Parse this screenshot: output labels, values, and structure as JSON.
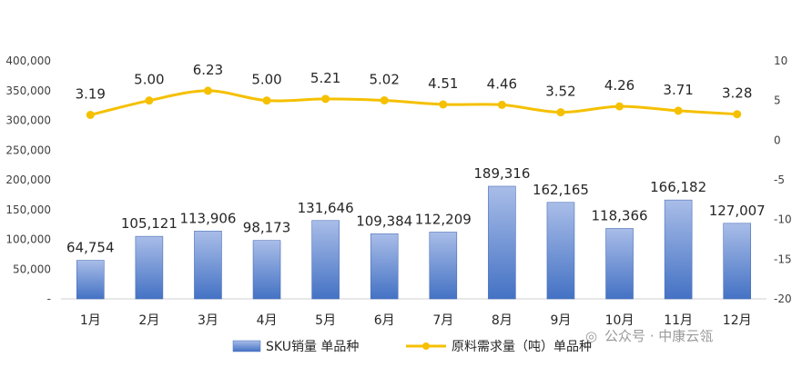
{
  "chart_data": {
    "type": "bar",
    "categories": [
      "1月",
      "2月",
      "3月",
      "4月",
      "5月",
      "6月",
      "7月",
      "8月",
      "9月",
      "10月",
      "11月",
      "12月"
    ],
    "series": [
      {
        "name": "SKU销量 单品种",
        "type": "bar",
        "axis": "left",
        "values": [
          64754,
          105121,
          113906,
          98173,
          131646,
          109384,
          112209,
          189316,
          162165,
          118366,
          166182,
          127007
        ],
        "labels": [
          "64,754",
          "105,121",
          "113,906",
          "98,173",
          "131,646",
          "109,384",
          "112,209",
          "189,316",
          "162,165",
          "118,366",
          "166,182",
          "127,007"
        ]
      },
      {
        "name": "原料需求量（吨）单品种",
        "type": "line",
        "axis": "right",
        "values": [
          3.19,
          5.0,
          6.23,
          5.0,
          5.21,
          5.02,
          4.51,
          4.46,
          3.52,
          4.26,
          3.71,
          3.28
        ],
        "labels": [
          "3.19",
          "5.00",
          "6.23",
          "5.00",
          "5.21",
          "5.02",
          "4.51",
          "4.46",
          "3.52",
          "4.26",
          "3.71",
          "3.28"
        ]
      }
    ],
    "ylim": [
      0,
      400000
    ],
    "y2lim": [
      -20,
      10
    ],
    "yticks": [
      "-",
      "50,000",
      "100,000",
      "150,000",
      "200,000",
      "250,000",
      "300,000",
      "350,000",
      "400,000"
    ],
    "y2ticks": [
      "-20",
      "-15",
      "-10",
      "-5",
      "0",
      "5",
      "10"
    ],
    "legend_position": "bottom",
    "grid": false
  },
  "colors": {
    "bar_top": "#a9bde8",
    "bar_bottom": "#4472c4",
    "bar_edge": "#4a6fb8",
    "line": "#f5c000"
  },
  "watermark": "公众号 · 中康云瓴"
}
